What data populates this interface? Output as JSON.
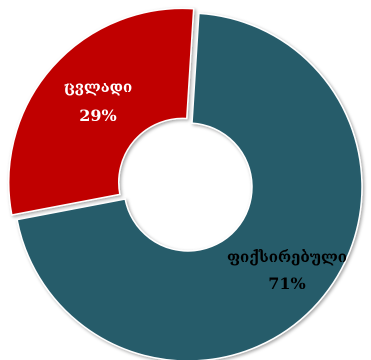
{
  "chart_data": {
    "type": "pie",
    "variant": "donut",
    "title": "",
    "legend": "none",
    "categories": [
      "ფიქსირებული",
      "ცვლადი"
    ],
    "values": [
      71,
      29
    ],
    "value_labels": [
      "71%",
      "29%"
    ],
    "colors": [
      "#255b6b",
      "#c00000"
    ],
    "label_colors": [
      "#000000",
      "#ffffff"
    ],
    "exploded_slice": "ცვლადი"
  }
}
